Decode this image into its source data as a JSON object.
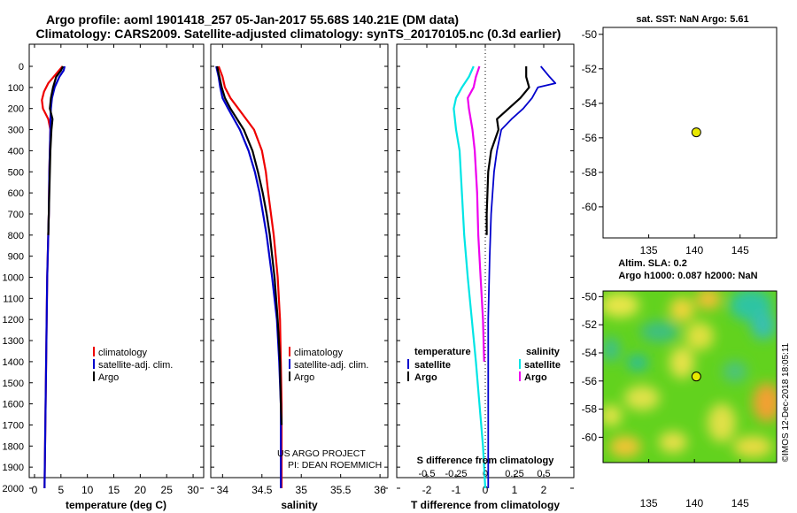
{
  "header": {
    "line1": "Argo profile: aoml 1901418_257 05-Jan-2017 55.68S 140.21E (DM data)",
    "line2": "Climatology: CARS2009. Satellite-adjusted climatology: synTS_20170105.nc (0.3d earlier)"
  },
  "depth_ticks": [
    "0",
    "100",
    "200",
    "300",
    "400",
    "500",
    "600",
    "700",
    "800",
    "900",
    "1000",
    "1100",
    "1200",
    "1300",
    "1400",
    "1500",
    "1600",
    "1700",
    "1800",
    "1900",
    "2000"
  ],
  "credit": {
    "line1": "US ARGO PROJECT",
    "line2": "PI: DEAN ROEMMICH"
  },
  "stamp": "©IMOS 12-Dec-2018 18:05:11",
  "legend": {
    "climatology": "climatology",
    "satellite_adj": "satellite-adj. clim.",
    "argo": "Argo"
  },
  "diff_legend": {
    "temperature": "temperature",
    "salinity": "salinity",
    "satellite": "satellite",
    "argo": "Argo"
  },
  "colors": {
    "climatology": "#ee0000",
    "satellite": "#0000cc",
    "argo": "#000000",
    "sal_satellite": "#00e5e5",
    "sal_argo": "#ee00ee",
    "marker": "#e8e800"
  },
  "chart_data": [
    {
      "type": "line",
      "id": "temperature",
      "xlabel": "temperature (deg C)",
      "ylabel": "",
      "xlim": [
        -1,
        32
      ],
      "ylim": [
        2050,
        0
      ],
      "xticks": [
        "0",
        "5",
        "10",
        "15",
        "20",
        "25",
        "30"
      ],
      "series": [
        {
          "name": "climatology",
          "depth": [
            0,
            50,
            80,
            120,
            160,
            200,
            250,
            300,
            400,
            500,
            700,
            1000,
            1400,
            1800,
            2000
          ],
          "values": [
            5.3,
            3.6,
            2.6,
            1.8,
            1.4,
            1.6,
            2.6,
            3.0,
            2.9,
            2.8,
            2.7,
            2.4,
            2.2,
            2.0,
            1.9
          ]
        },
        {
          "name": "satellite-adj. clim.",
          "depth": [
            0,
            20,
            50,
            100,
            150,
            200,
            250,
            300,
            400,
            500,
            700,
            1000,
            1400,
            1800,
            2000
          ],
          "values": [
            5.7,
            5.5,
            4.7,
            3.8,
            3.3,
            3.1,
            3.0,
            3.0,
            2.9,
            2.8,
            2.7,
            2.4,
            2.2,
            2.0,
            1.9
          ]
        },
        {
          "name": "Argo",
          "depth": [
            0,
            20,
            50,
            100,
            150,
            200,
            250,
            300,
            400,
            500,
            700,
            800
          ],
          "values": [
            5.4,
            5.0,
            4.1,
            3.5,
            3.1,
            2.9,
            3.4,
            3.2,
            3.0,
            2.9,
            2.7,
            2.6
          ]
        }
      ]
    },
    {
      "type": "line",
      "id": "salinity",
      "xlabel": "salinity",
      "ylabel": "",
      "xlim": [
        33.85,
        36.1
      ],
      "ylim": [
        2050,
        0
      ],
      "xticks": [
        "34",
        "34.5",
        "35",
        "35.5",
        "36"
      ],
      "series": [
        {
          "name": "climatology",
          "depth": [
            0,
            50,
            100,
            150,
            200,
            300,
            400,
            500,
            600,
            800,
            1000,
            1200,
            1400,
            1600,
            2000
          ],
          "values": [
            33.95,
            34.0,
            34.03,
            34.1,
            34.2,
            34.4,
            34.5,
            34.55,
            34.58,
            34.65,
            34.7,
            34.73,
            34.74,
            34.75,
            34.75
          ]
        },
        {
          "name": "satellite-adj. clim.",
          "depth": [
            0,
            50,
            100,
            150,
            200,
            300,
            400,
            500,
            600,
            800,
            1000,
            1200,
            1400,
            1600,
            2000
          ],
          "values": [
            33.92,
            33.95,
            33.97,
            34.0,
            34.07,
            34.22,
            34.33,
            34.41,
            34.47,
            34.56,
            34.63,
            34.69,
            34.72,
            34.74,
            34.74
          ]
        },
        {
          "name": "Argo",
          "depth": [
            0,
            50,
            100,
            150,
            200,
            300,
            400,
            500,
            600,
            700,
            800,
            1000,
            1200,
            1400,
            1600,
            1700
          ],
          "values": [
            33.93,
            33.96,
            33.99,
            34.03,
            34.1,
            34.27,
            34.38,
            34.45,
            34.51,
            34.56,
            34.6,
            34.66,
            34.7,
            34.73,
            34.74,
            34.75
          ]
        }
      ]
    },
    {
      "type": "line",
      "id": "difference",
      "xlabel": "T difference from climatology",
      "x2label": "S difference from climatology",
      "xlim": [
        -3,
        3
      ],
      "ylim": [
        2050,
        0
      ],
      "xticks": [
        "-2",
        "-1",
        "0",
        "1",
        "2"
      ],
      "x2ticks": [
        "-0.5",
        "-0.25",
        "0",
        "0.25",
        "0.5"
      ],
      "series": [
        {
          "name": "temperature satellite",
          "depth": [
            0,
            50,
            80,
            100,
            150,
            200,
            250,
            300,
            400,
            500,
            700,
            900,
            1200,
            2000
          ],
          "values": [
            1.9,
            2.2,
            2.4,
            1.8,
            1.6,
            1.3,
            0.9,
            0.55,
            0.4,
            0.3,
            0.2,
            0.15,
            0.1,
            0.1
          ]
        },
        {
          "name": "temperature Argo",
          "depth": [
            0,
            50,
            100,
            150,
            200,
            250,
            300,
            400,
            500,
            700,
            800
          ],
          "values": [
            1.4,
            1.4,
            1.5,
            1.2,
            0.8,
            0.4,
            0.45,
            0.2,
            0.1,
            0.05,
            0.05
          ]
        },
        {
          "name": "salinity satellite",
          "depth": [
            0,
            50,
            100,
            150,
            200,
            300,
            400,
            600,
            800,
            1000,
            1400,
            1800,
            2000
          ],
          "values": [
            -0.1,
            -0.14,
            -0.2,
            -0.25,
            -0.27,
            -0.25,
            -0.22,
            -0.2,
            -0.18,
            -0.15,
            -0.08,
            -0.02,
            0.0
          ]
        },
        {
          "name": "salinity Argo",
          "depth": [
            0,
            50,
            100,
            150,
            200,
            300,
            400,
            600,
            800,
            1000,
            1200,
            1400
          ],
          "values": [
            -0.05,
            -0.08,
            -0.1,
            -0.15,
            -0.14,
            -0.11,
            -0.09,
            -0.07,
            -0.06,
            -0.04,
            -0.02,
            -0.01
          ]
        }
      ]
    },
    {
      "type": "scatter",
      "id": "sst_map",
      "title": "sat. SST: NaN Argo: 5.61",
      "xlim": [
        130,
        149
      ],
      "ylim": [
        -61.8,
        -49.6
      ],
      "xticks": [
        "135",
        "140",
        "145"
      ],
      "yticks": [
        "-50",
        "-52",
        "-54",
        "-56",
        "-58",
        "-60"
      ],
      "points": [
        {
          "lon": 140.21,
          "lat": -55.68
        }
      ]
    },
    {
      "type": "heatmap",
      "id": "sla_map",
      "title1": "Altim. SLA: 0.2",
      "title2": "Argo h1000: 0.087 h2000: NaN",
      "xlim": [
        130,
        149
      ],
      "ylim": [
        -61.8,
        -49.6
      ],
      "xticks": [
        "135",
        "140",
        "145"
      ],
      "yticks": [
        "-50",
        "-52",
        "-54",
        "-56",
        "-58",
        "-60"
      ],
      "points": [
        {
          "lon": 140.21,
          "lat": -55.68
        }
      ]
    }
  ]
}
